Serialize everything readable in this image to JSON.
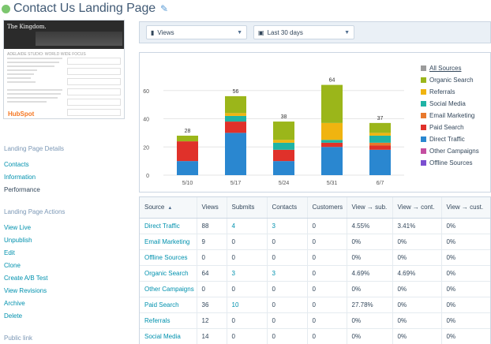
{
  "header": {
    "title": "Contact Us Landing Page",
    "status": "published"
  },
  "thumbnail": {
    "banner_text": "The Kingdom.",
    "heading": "ADELAIDE STUDIO: WORLD WIDE FOCUS",
    "logo": "HubSpot"
  },
  "sidebar": {
    "details_title": "Landing Page Details",
    "details_items": [
      {
        "label": "Contacts",
        "active": false
      },
      {
        "label": "Information",
        "active": false
      },
      {
        "label": "Performance",
        "active": true
      }
    ],
    "actions_title": "Landing Page Actions",
    "actions": [
      "View Live",
      "Unpublish",
      "Edit",
      "Clone",
      "Create A/B Test",
      "View Revisions",
      "Archive",
      "Delete"
    ],
    "public_link_label": "Public link"
  },
  "filters": {
    "metric": {
      "icon": "bar-chart-icon",
      "value": "Views"
    },
    "range": {
      "icon": "calendar-icon",
      "value": "Last 30 days"
    }
  },
  "chart_data": {
    "type": "bar",
    "stacked": true,
    "categories": [
      "5/10",
      "5/17",
      "5/24",
      "5/31",
      "6/7"
    ],
    "totals": [
      28,
      56,
      38,
      64,
      37
    ],
    "ylim": [
      0,
      80
    ],
    "yticks": [
      0,
      20,
      40,
      60
    ],
    "series": [
      {
        "name": "Direct Traffic",
        "color": "#2a87d0",
        "values": [
          10,
          30,
          10,
          20,
          18
        ]
      },
      {
        "name": "Paid Search",
        "color": "#e0312a",
        "values": [
          14,
          8,
          8,
          3,
          3
        ]
      },
      {
        "name": "Email Marketing",
        "color": "#e8782c",
        "values": [
          0,
          0,
          0,
          0,
          2
        ]
      },
      {
        "name": "Social Media",
        "color": "#1fb3a5",
        "values": [
          0,
          4,
          5,
          2,
          5
        ]
      },
      {
        "name": "Referrals",
        "color": "#f0b410",
        "values": [
          0,
          2,
          2,
          12,
          2
        ]
      },
      {
        "name": "Organic Search",
        "color": "#9bb61a",
        "values": [
          4,
          12,
          13,
          27,
          7
        ]
      }
    ],
    "legend": [
      {
        "name": "All Sources",
        "color": "#9b9b9b"
      },
      {
        "name": "Organic Search",
        "color": "#9bb61a"
      },
      {
        "name": "Referrals",
        "color": "#f0b410"
      },
      {
        "name": "Social Media",
        "color": "#1fb3a5"
      },
      {
        "name": "Email Marketing",
        "color": "#e8782c"
      },
      {
        "name": "Paid Search",
        "color": "#e0312a"
      },
      {
        "name": "Direct Traffic",
        "color": "#2a87d0"
      },
      {
        "name": "Other Campaigns",
        "color": "#c44ea0"
      },
      {
        "name": "Offline Sources",
        "color": "#7b4fd0"
      }
    ]
  },
  "table": {
    "columns": [
      "Source",
      "Views",
      "Submits",
      "Contacts",
      "Customers",
      "View → sub.",
      "View → cont.",
      "View → cust."
    ],
    "rows": [
      {
        "source": "Direct Traffic",
        "views": "88",
        "submits": "4",
        "contacts": "3",
        "customers": "0",
        "v_sub": "4.55%",
        "v_cont": "3.41%",
        "v_cust": "0%"
      },
      {
        "source": "Email Marketing",
        "views": "9",
        "submits": "0",
        "contacts": "0",
        "customers": "0",
        "v_sub": "0%",
        "v_cont": "0%",
        "v_cust": "0%"
      },
      {
        "source": "Offline Sources",
        "views": "0",
        "submits": "0",
        "contacts": "0",
        "customers": "0",
        "v_sub": "0%",
        "v_cont": "0%",
        "v_cust": "0%"
      },
      {
        "source": "Organic Search",
        "views": "64",
        "submits": "3",
        "contacts": "3",
        "customers": "0",
        "v_sub": "4.69%",
        "v_cont": "4.69%",
        "v_cust": "0%"
      },
      {
        "source": "Other Campaigns",
        "views": "0",
        "submits": "0",
        "contacts": "0",
        "customers": "0",
        "v_sub": "0%",
        "v_cont": "0%",
        "v_cust": "0%"
      },
      {
        "source": "Paid Search",
        "views": "36",
        "submits": "10",
        "contacts": "0",
        "customers": "0",
        "v_sub": "27.78%",
        "v_cont": "0%",
        "v_cust": "0%"
      },
      {
        "source": "Referrals",
        "views": "12",
        "submits": "0",
        "contacts": "0",
        "customers": "0",
        "v_sub": "0%",
        "v_cont": "0%",
        "v_cust": "0%"
      },
      {
        "source": "Social Media",
        "views": "14",
        "submits": "0",
        "contacts": "0",
        "customers": "0",
        "v_sub": "0%",
        "v_cont": "0%",
        "v_cust": "0%"
      }
    ]
  }
}
